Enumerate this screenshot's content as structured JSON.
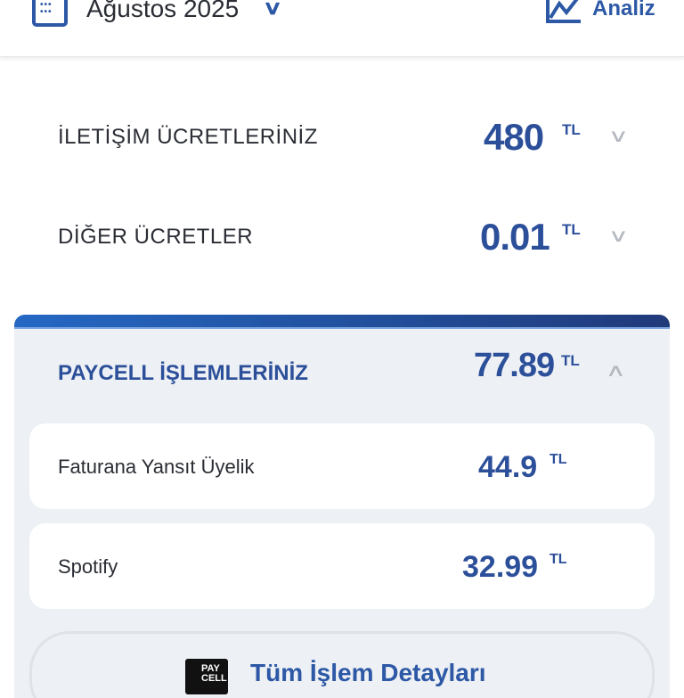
{
  "header": {
    "month": "Ağustos 2025",
    "analysis_label": "Analiz"
  },
  "charges": [
    {
      "label": "İLETİŞİM ÜCRETLERİNİZ",
      "amount": "480",
      "currency": "TL"
    },
    {
      "label": "DİĞER ÜCRETLER",
      "amount": "0.01",
      "currency": "TL"
    }
  ],
  "paycell": {
    "label": "PAYCELL İŞLEMLERİNİZ",
    "amount": "77.89",
    "currency": "TL",
    "items": [
      {
        "name": "Faturana Yansıt Üyelik",
        "amount": "44.9",
        "currency": "TL"
      },
      {
        "name": "Spotify",
        "amount": "32.99",
        "currency": "TL"
      }
    ],
    "details_button": "Tüm İşlem Detayları",
    "logo_text": "PAY CELL"
  },
  "colors": {
    "accent": "#2c58a6",
    "amount": "#2c4f9a",
    "panel": "#edf0f4"
  }
}
